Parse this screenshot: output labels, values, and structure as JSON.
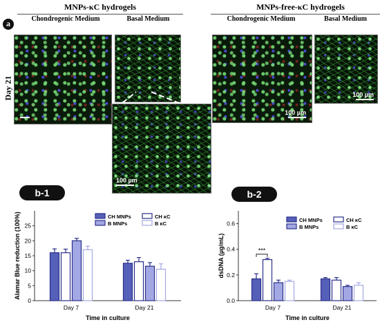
{
  "panel_a": {
    "label": "a",
    "row_label": "Day 21",
    "groups": [
      {
        "title": "MNPs-κC hydrogels",
        "columns": [
          "Chondrogenic Medium",
          "Basal Medium"
        ]
      },
      {
        "title": "MNPs-free-κC hydrogels",
        "columns": [
          "Chondrogenic Medium",
          "Basal Medium"
        ]
      }
    ],
    "scale_label": "100 µm",
    "colors": {
      "green": "#4cc94c",
      "blue": "#3b3bd6",
      "red": "#a02828"
    }
  },
  "badges": {
    "b1": "b-1",
    "b2": "b-2"
  },
  "chart_data": [
    {
      "type": "bar",
      "id": "b-1",
      "categories": [
        "Day 7",
        "Day 21"
      ],
      "series": [
        {
          "name": "CH MNPs",
          "values": [
            16,
            12.5
          ],
          "errors": [
            1.3,
            1.0
          ],
          "fill": "#5560b8"
        },
        {
          "name": "CH  κC",
          "values": [
            16,
            13
          ],
          "errors": [
            1.2,
            1.4
          ],
          "fill": "#ffffff"
        },
        {
          "name": "B MNPs",
          "values": [
            20,
            11.5
          ],
          "errors": [
            0.8,
            1.2
          ],
          "fill": "#a3a8e4"
        },
        {
          "name": "B κC",
          "values": [
            17,
            10.5
          ],
          "errors": [
            1.2,
            1.8
          ],
          "fill": "#ffffff"
        }
      ],
      "xlabel": "Time in culture",
      "ylabel": "Alamar Blue reduction (100%)",
      "ylim": [
        0,
        30
      ],
      "yticks": [
        "0",
        "5",
        "10",
        "15",
        "20",
        "25"
      ]
    },
    {
      "type": "bar",
      "id": "b-2",
      "categories": [
        "Day 7",
        "Day 21"
      ],
      "series": [
        {
          "name": "CH MNPs",
          "values": [
            0.17,
            0.17
          ],
          "errors": [
            0.04,
            0.01
          ],
          "fill": "#5560b8"
        },
        {
          "name": "CH  κC",
          "values": [
            0.32,
            0.16
          ],
          "errors": [
            0.01,
            0.02
          ],
          "fill": "#ffffff"
        },
        {
          "name": "B MNPs",
          "values": [
            0.14,
            0.11
          ],
          "errors": [
            0.02,
            0.01
          ],
          "fill": "#a3a8e4"
        },
        {
          "name": "B κC",
          "values": [
            0.15,
            0.12
          ],
          "errors": [
            0.01,
            0.02
          ],
          "fill": "#ffffff"
        }
      ],
      "xlabel": "Time in culture",
      "ylabel": "dsDNA (µg/mL)",
      "ylim": [
        0,
        0.7
      ],
      "yticks": [
        "0.0",
        "0.2",
        "0.4",
        "0.6"
      ],
      "annotation": "***"
    }
  ]
}
